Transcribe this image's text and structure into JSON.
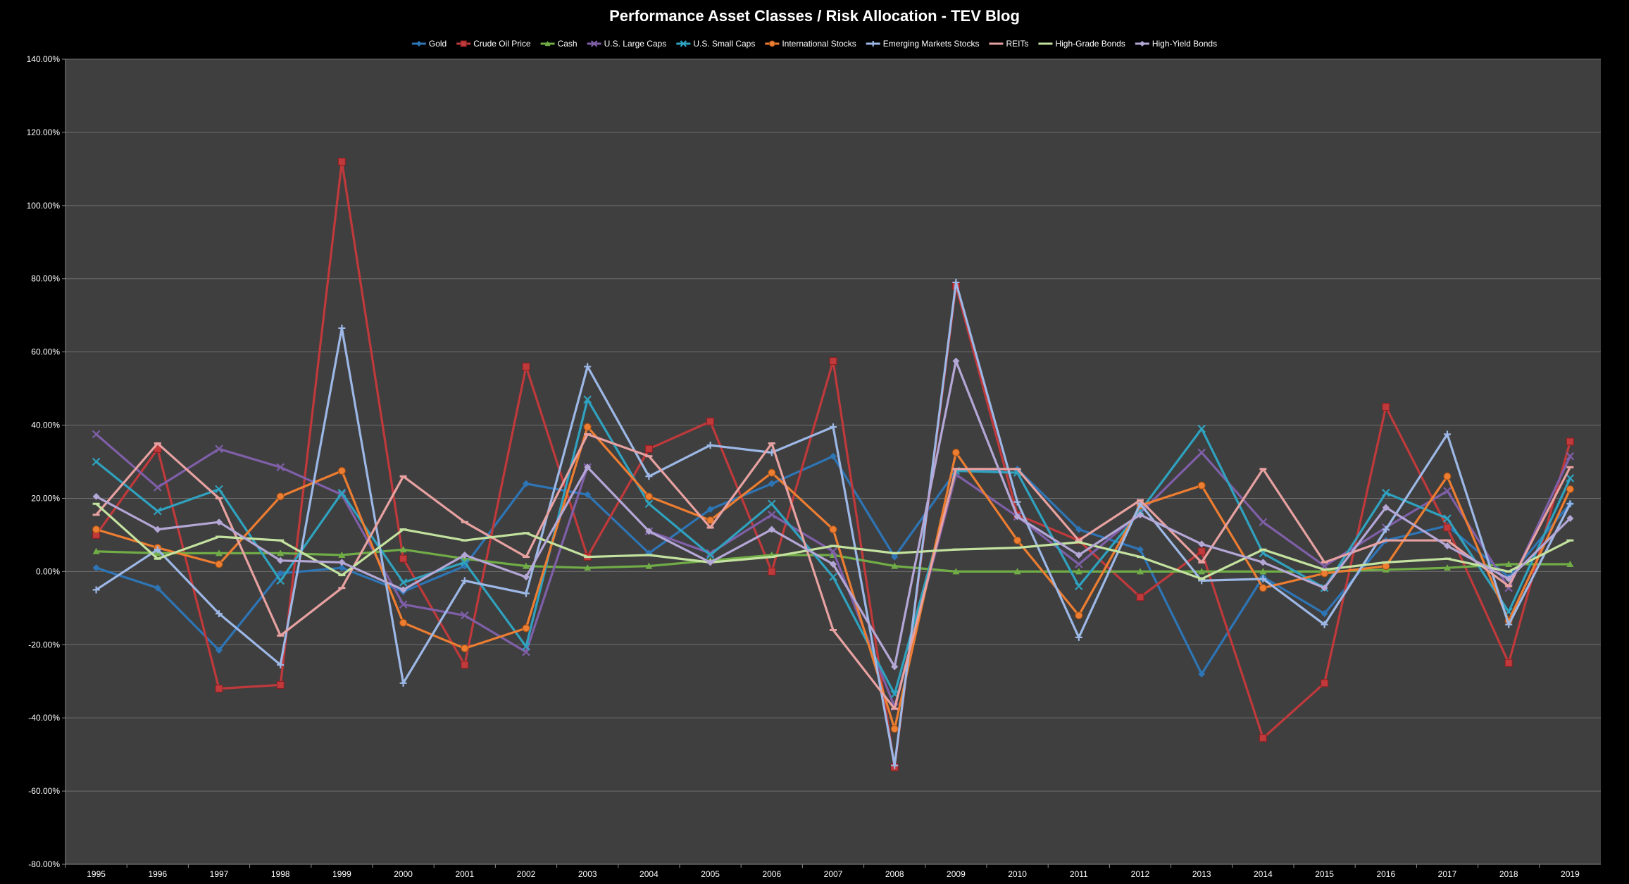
{
  "chart_data": {
    "type": "line",
    "title": "Performance Asset Classes / Risk Allocation - TEV Blog",
    "xlabel": "",
    "ylabel": "",
    "x": [
      "1995",
      "1996",
      "1997",
      "1998",
      "1999",
      "2000",
      "2001",
      "2002",
      "2003",
      "2004",
      "2005",
      "2006",
      "2007",
      "2008",
      "2009",
      "2010",
      "2011",
      "2012",
      "2013",
      "2014",
      "2015",
      "2016",
      "2017",
      "2018",
      "2019"
    ],
    "ylim": [
      -80,
      140
    ],
    "ytick_step": 20,
    "ytick_labels": [
      "140.00%",
      "120.00%",
      "100.00%",
      "80.00%",
      "60.00%",
      "40.00%",
      "20.00%",
      "0.00%",
      "-20.00%",
      "-40.00%",
      "-60.00%",
      "-80.00%"
    ],
    "grid": true,
    "legend_position": "top",
    "plot_background": "#3f3f3f",
    "series": [
      {
        "name": "Gold",
        "color": "#2e75b6",
        "marker": "diamond",
        "values": [
          1.0,
          -4.5,
          -21.5,
          -0.5,
          1.0,
          -5.5,
          1.5,
          24.0,
          21.0,
          5.0,
          17.0,
          24.0,
          31.5,
          4.0,
          27.5,
          28.0,
          11.5,
          6.0,
          -28.0,
          -1.5,
          -11.5,
          8.5,
          12.5,
          -1.5,
          18.5
        ]
      },
      {
        "name": "Crude Oil Price",
        "color": "#c0393b",
        "marker": "square",
        "values": [
          10.0,
          33.5,
          -32.0,
          -31.0,
          112.0,
          3.5,
          -25.5,
          56.0,
          4.0,
          33.5,
          41.0,
          0.0,
          57.5,
          -53.5,
          78.0,
          15.5,
          8.5,
          -7.0,
          5.5,
          -45.5,
          -30.5,
          45.0,
          12.0,
          -25.0,
          35.5
        ]
      },
      {
        "name": "Cash",
        "color": "#70ad47",
        "marker": "triangle",
        "values": [
          5.5,
          5.0,
          5.0,
          5.0,
          4.5,
          6.0,
          3.5,
          1.5,
          1.0,
          1.5,
          3.0,
          4.5,
          4.5,
          1.5,
          0.0,
          0.0,
          0.0,
          0.0,
          0.0,
          0.0,
          0.0,
          0.5,
          1.0,
          2.0,
          2.0
        ]
      },
      {
        "name": "U.S. Large Caps",
        "color": "#7f5fa8",
        "marker": "x",
        "values": [
          37.5,
          23.0,
          33.5,
          28.5,
          21.0,
          -9.0,
          -12.0,
          -22.0,
          28.5,
          11.0,
          5.0,
          15.5,
          5.5,
          -37.0,
          26.5,
          15.0,
          2.0,
          16.0,
          32.5,
          13.5,
          1.5,
          12.0,
          22.0,
          -4.5,
          31.5
        ]
      },
      {
        "name": "U.S. Small Caps",
        "color": "#2fa2bf",
        "marker": "x",
        "values": [
          30.0,
          16.5,
          22.5,
          -2.5,
          21.5,
          -3.0,
          2.5,
          -20.5,
          47.0,
          18.5,
          4.5,
          18.5,
          -1.5,
          -33.5,
          27.5,
          27.0,
          -4.0,
          16.5,
          39.0,
          5.0,
          -4.5,
          21.5,
          14.5,
          -11.0,
          25.5
        ]
      },
      {
        "name": "International Stocks",
        "color": "#ed7d31",
        "marker": "circle",
        "values": [
          11.5,
          6.5,
          2.0,
          20.5,
          27.5,
          -14.0,
          -21.0,
          -15.5,
          39.5,
          20.5,
          14.0,
          27.0,
          11.5,
          -43.0,
          32.5,
          8.5,
          -12.0,
          18.0,
          23.5,
          -4.5,
          -0.5,
          1.5,
          26.0,
          -13.5,
          22.5
        ]
      },
      {
        "name": "Emerging Markets Stocks",
        "color": "#9db8e6",
        "marker": "cross",
        "values": [
          -5.0,
          6.0,
          -11.5,
          -25.5,
          66.5,
          -30.5,
          -2.5,
          -6.0,
          56.0,
          26.0,
          34.5,
          32.5,
          39.5,
          -53.0,
          79.0,
          19.0,
          -18.0,
          18.5,
          -2.5,
          -2.0,
          -14.5,
          11.5,
          37.5,
          -14.5,
          18.5
        ]
      },
      {
        "name": "REITs",
        "color": "#e8a1a1",
        "marker": "dash",
        "values": [
          15.5,
          35.0,
          20.0,
          -17.5,
          -4.5,
          26.0,
          13.5,
          4.0,
          37.5,
          31.5,
          12.0,
          35.0,
          -16.0,
          -37.5,
          28.0,
          28.0,
          8.5,
          19.5,
          2.5,
          28.0,
          2.5,
          8.5,
          8.5,
          -4.0,
          28.5
        ]
      },
      {
        "name": "High-Grade Bonds",
        "color": "#c4e29f",
        "marker": "dash",
        "values": [
          18.5,
          3.5,
          9.5,
          8.5,
          -1.0,
          11.5,
          8.5,
          10.5,
          4.0,
          4.5,
          2.5,
          4.0,
          7.0,
          5.0,
          6.0,
          6.5,
          8.0,
          4.0,
          -2.0,
          6.0,
          0.5,
          2.5,
          3.5,
          0.0,
          8.5
        ]
      },
      {
        "name": "High-Yield Bonds",
        "color": "#b4a7d6",
        "marker": "diamond",
        "values": [
          20.5,
          11.5,
          13.5,
          3.0,
          2.5,
          -5.0,
          4.5,
          -1.5,
          28.5,
          11.0,
          2.5,
          11.5,
          2.0,
          -26.0,
          57.5,
          15.0,
          4.5,
          15.5,
          7.5,
          2.5,
          -4.5,
          17.5,
          7.0,
          -2.0,
          14.5
        ]
      }
    ]
  }
}
